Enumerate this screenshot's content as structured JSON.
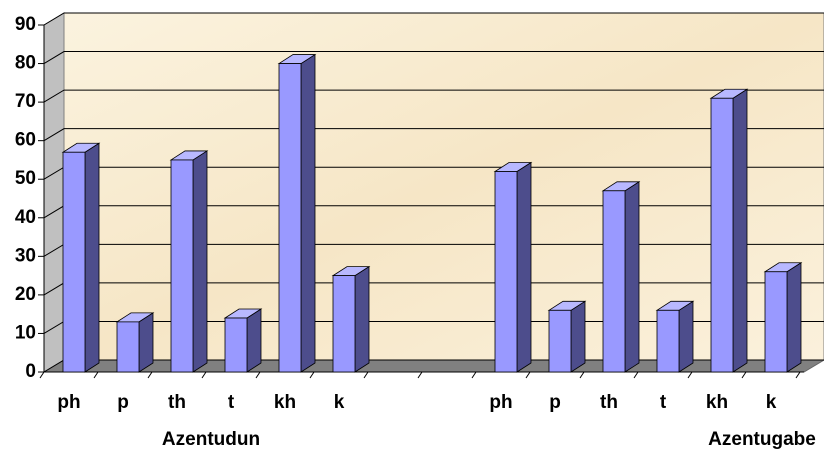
{
  "chart_data": {
    "type": "bar3d",
    "categories": [
      "ph",
      "p",
      "th",
      "t",
      "kh",
      "k",
      null,
      null,
      "ph",
      "p",
      "th",
      "t",
      "kh",
      "k"
    ],
    "values": [
      57,
      13,
      55,
      14,
      80,
      25,
      null,
      null,
      52,
      16,
      47,
      16,
      71,
      26
    ],
    "group_labels": [
      "Azentudun",
      "Azentugabe"
    ],
    "color": "#9999ff",
    "ylim": [
      0,
      90
    ],
    "yticks": [
      0,
      10,
      20,
      30,
      40,
      50,
      60,
      70,
      80,
      90
    ],
    "grid": true
  }
}
